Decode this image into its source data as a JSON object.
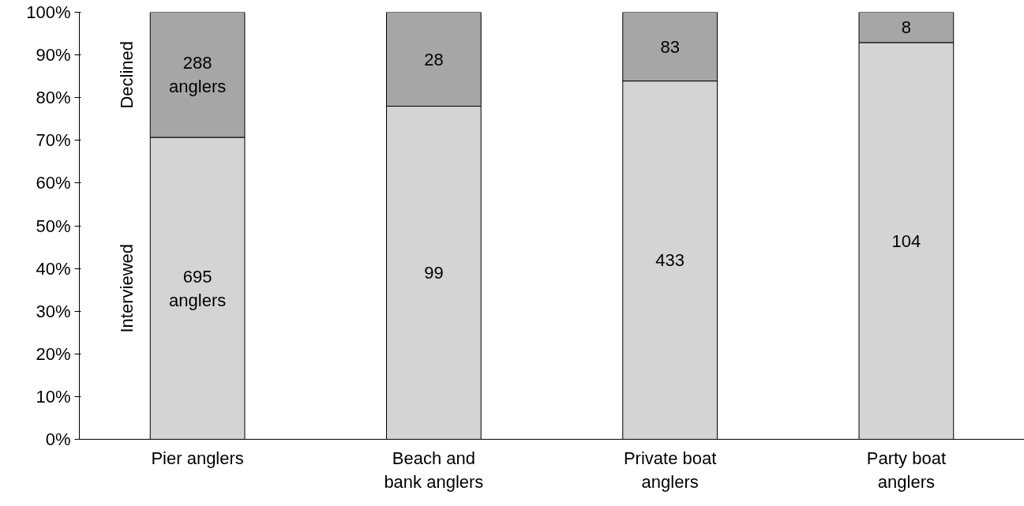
{
  "chart_data": {
    "type": "bar",
    "stacked": true,
    "categories": [
      "Pier anglers",
      "Beach and bank anglers",
      "Private boat anglers",
      "Party boat anglers"
    ],
    "series": [
      {
        "name": "Interviewed",
        "color": "#d4d4d4",
        "values": [
          70.7,
          78.0,
          83.9,
          92.9
        ]
      },
      {
        "name": "Declined",
        "color": "#a6a6a6",
        "values": [
          29.3,
          22.0,
          16.1,
          7.1
        ]
      }
    ],
    "annotations": [
      "695 anglers",
      "99",
      "433",
      "104",
      "288 anglers",
      "28",
      "83",
      "8"
    ],
    "ylim": [
      0,
      100
    ],
    "yticks": [
      {
        "value": 0,
        "label": "0%"
      },
      {
        "value": 10,
        "label": "10%"
      },
      {
        "value": 20,
        "label": "20%"
      },
      {
        "value": 30,
        "label": "30%"
      },
      {
        "value": 40,
        "label": "40%"
      },
      {
        "value": 50,
        "label": "50%"
      },
      {
        "value": 60,
        "label": "60%"
      },
      {
        "value": 70,
        "label": "70%"
      },
      {
        "value": 80,
        "label": "80%"
      },
      {
        "value": 90,
        "label": "90%"
      },
      {
        "value": 100,
        "label": "100%"
      }
    ],
    "grid": false,
    "legend": false
  }
}
